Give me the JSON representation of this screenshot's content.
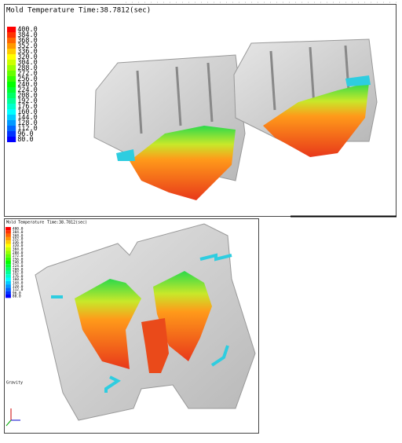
{
  "views": [
    {
      "title": "Mold Temperature",
      "time": "Time:38.7812(sec)",
      "legend": [
        "400.0",
        "384.0",
        "368.0",
        "352.0",
        "336.0",
        "320.0",
        "304.0",
        "288.0",
        "272.0",
        "256.0",
        "240.0",
        "224.0",
        "208.0",
        "192.0",
        "176.0",
        "160.0",
        "144.0",
        "128.0",
        "112.0",
        "96.0",
        "80.0"
      ]
    },
    {
      "title": "Mold Temperature",
      "time": "Time:38.7812(sec)",
      "legend": [
        "400.0",
        "384.0",
        "368.0",
        "352.0",
        "336.0",
        "320.0",
        "304.0",
        "288.0",
        "272.0",
        "256.0",
        "240.0",
        "224.0",
        "208.0",
        "192.0",
        "176.0",
        "160.0",
        "144.0",
        "128.0",
        "112.0",
        "96.0",
        "80.0"
      ],
      "gravity": "Gravity"
    }
  ]
}
